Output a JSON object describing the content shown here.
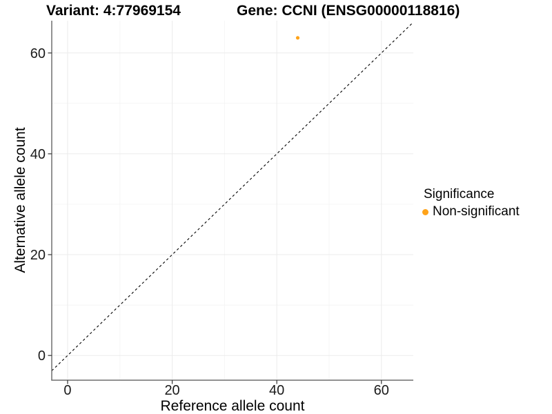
{
  "titles": {
    "variant": "Variant: 4:77969154",
    "gene": "Gene: CCNI (ENSG00000118816)"
  },
  "axes": {
    "x_label": "Reference allele count",
    "y_label": "Alternative allele count"
  },
  "legend": {
    "title": "Significance",
    "items": [
      {
        "label": "Non-significant",
        "color": "#FFA319"
      }
    ]
  },
  "chart_data": {
    "type": "scatter",
    "title": "Variant: 4:77969154 | Gene: CCNI (ENSG00000118816)",
    "xlabel": "Reference allele count",
    "ylabel": "Alternative allele count",
    "points": [
      {
        "x": 44,
        "y": 63,
        "series": "Non-significant",
        "color": "#FFA319",
        "radius": 2.6
      }
    ],
    "x_ticks": [
      0,
      20,
      40,
      60
    ],
    "y_ticks": [
      0,
      20,
      40,
      60
    ],
    "x_minor_ticks": [
      10,
      30,
      50
    ],
    "y_minor_ticks": [
      10,
      30,
      50
    ],
    "xlim": [
      -3.03,
      66.1
    ],
    "ylim": [
      -4.9,
      66.4
    ],
    "reference_line": {
      "type": "identity_y_equals_x",
      "style": "dashed",
      "color": "#000000"
    },
    "grid": true,
    "legend_position": "right",
    "colors": {
      "major_grid": "#ebebeb",
      "minor_grid": "#f4f4f4",
      "axis_line": "#6e6e6e",
      "tick_mark": "#333333",
      "tick_text": "#1a1a1a"
    }
  }
}
